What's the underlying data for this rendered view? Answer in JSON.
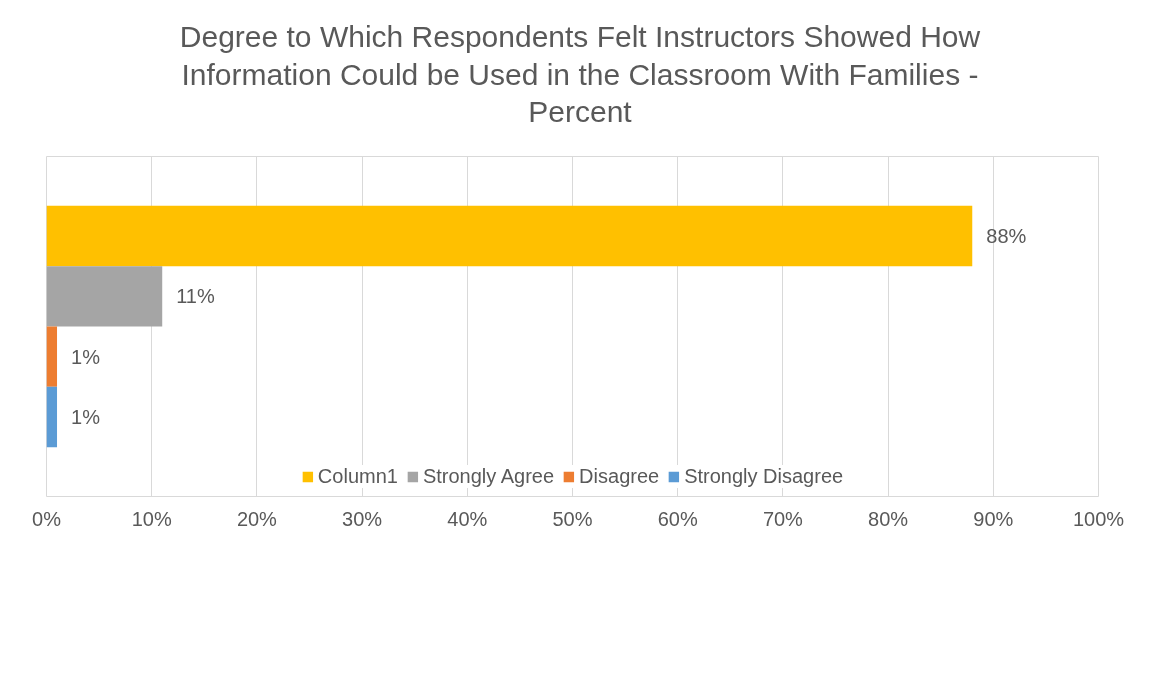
{
  "chart_data": {
    "type": "bar",
    "orientation": "horizontal",
    "title": "Degree to Which Respondents Felt Instructors Showed How Information Could be Used in the Classroom With Families - Percent",
    "categories": [
      null
    ],
    "series": [
      {
        "name": "Column1",
        "color": "#ffc000",
        "values": [
          88
        ],
        "value_labels": [
          "88%"
        ]
      },
      {
        "name": "Strongly Agree",
        "color": "#a5a5a5",
        "values": [
          11
        ],
        "value_labels": [
          "11%"
        ]
      },
      {
        "name": "Disagree",
        "color": "#ed7d31",
        "values": [
          1
        ],
        "value_labels": [
          "1%"
        ]
      },
      {
        "name": "Strongly Disagree",
        "color": "#5b9bd5",
        "values": [
          1
        ],
        "value_labels": [
          "1%"
        ]
      }
    ],
    "xlim": [
      0,
      100
    ],
    "xticks": [
      {
        "value": 0,
        "label": "0%"
      },
      {
        "value": 10,
        "label": "10%"
      },
      {
        "value": 20,
        "label": "20%"
      },
      {
        "value": 30,
        "label": "30%"
      },
      {
        "value": 40,
        "label": "40%"
      },
      {
        "value": 50,
        "label": "50%"
      },
      {
        "value": 60,
        "label": "60%"
      },
      {
        "value": 70,
        "label": "70%"
      },
      {
        "value": 80,
        "label": "80%"
      },
      {
        "value": 90,
        "label": "90%"
      },
      {
        "value": 100,
        "label": "100%"
      }
    ],
    "grid": "x",
    "legend": "bottom"
  }
}
